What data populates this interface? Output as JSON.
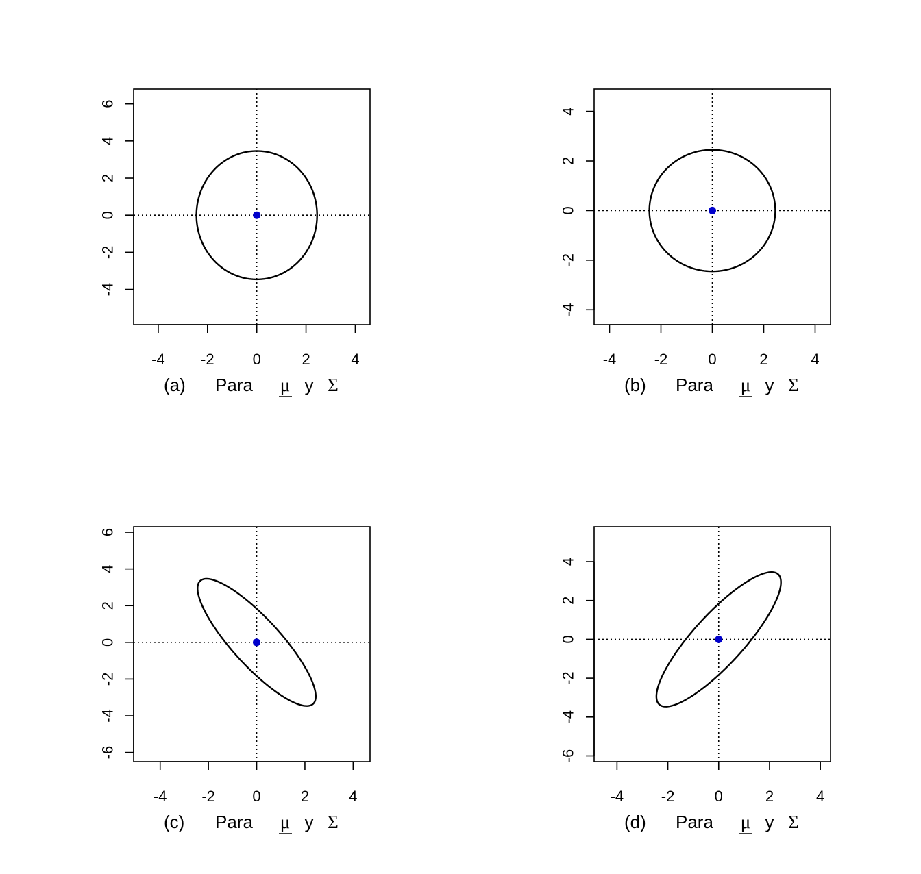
{
  "chart_data": [
    {
      "type": "line",
      "panel": "(a)",
      "xlabel": {
        "prefix": "(a)",
        "para": "Para",
        "mu": "μ",
        "y": "y",
        "sigma": "Σ"
      },
      "xlim": [
        -5,
        4.6
      ],
      "ylim": [
        -5.9,
        6.8
      ],
      "xticks": [
        -4,
        -2,
        0,
        2,
        4
      ],
      "yticks": [
        -4,
        -2,
        0,
        2,
        4,
        6
      ],
      "reference_lines": {
        "x": 0,
        "y": 0,
        "style": "dotted"
      },
      "mean_point": {
        "x": 0,
        "y": 0,
        "color": "#0000cc"
      },
      "ellipse": {
        "center": [
          0,
          0
        ],
        "semi_axes": [
          2.45,
          3.46
        ],
        "angle_deg": 0
      },
      "grid": false
    },
    {
      "type": "line",
      "panel": "(b)",
      "xlabel": {
        "prefix": "(b)",
        "para": "Para",
        "mu": "μ",
        "y": "y",
        "sigma": "Σ"
      },
      "xlim": [
        -4.6,
        4.6
      ],
      "ylim": [
        -4.6,
        4.9
      ],
      "xticks": [
        -4,
        -2,
        0,
        2,
        4
      ],
      "yticks": [
        -4,
        -2,
        0,
        2,
        4
      ],
      "reference_lines": {
        "x": 0,
        "y": 0,
        "style": "dotted"
      },
      "mean_point": {
        "x": 0,
        "y": 0,
        "color": "#0000cc"
      },
      "ellipse": {
        "center": [
          0,
          0
        ],
        "semi_axes": [
          2.45,
          2.45
        ],
        "angle_deg": 0
      },
      "grid": false
    },
    {
      "type": "line",
      "panel": "(c)",
      "xlabel": {
        "prefix": "(c)",
        "para": "Para",
        "mu": "μ",
        "y": "y",
        "sigma": "Σ"
      },
      "xlim": [
        -5.1,
        4.7
      ],
      "ylim": [
        -6.5,
        6.3
      ],
      "xticks": [
        -4,
        -2,
        0,
        2,
        4
      ],
      "yticks": [
        -6,
        -4,
        -2,
        0,
        2,
        4,
        6
      ],
      "reference_lines": {
        "x": 0,
        "y": 0,
        "style": "dotted"
      },
      "mean_point": {
        "x": 0,
        "y": 0,
        "color": "#0000cc"
      },
      "ellipse": {
        "center": [
          0,
          0
        ],
        "var_x": 1.0,
        "var_y": 2.0,
        "cov": -1.2,
        "k": 2.45
      },
      "grid": false
    },
    {
      "type": "line",
      "panel": "(d)",
      "xlabel": {
        "prefix": "(d)",
        "para": "Para",
        "mu": "μ",
        "y": "y",
        "sigma": "Σ"
      },
      "xlim": [
        -4.9,
        4.4
      ],
      "ylim": [
        -6.3,
        5.8
      ],
      "xticks": [
        -4,
        -2,
        0,
        2,
        4
      ],
      "yticks": [
        -6,
        -4,
        -2,
        0,
        2,
        4
      ],
      "reference_lines": {
        "x": 0,
        "y": 0,
        "style": "dotted"
      },
      "mean_point": {
        "x": 0,
        "y": 0,
        "color": "#0000cc"
      },
      "ellipse": {
        "center": [
          0,
          0
        ],
        "var_x": 1.0,
        "var_y": 2.0,
        "cov": 1.2,
        "k": 2.45
      },
      "grid": false
    }
  ]
}
